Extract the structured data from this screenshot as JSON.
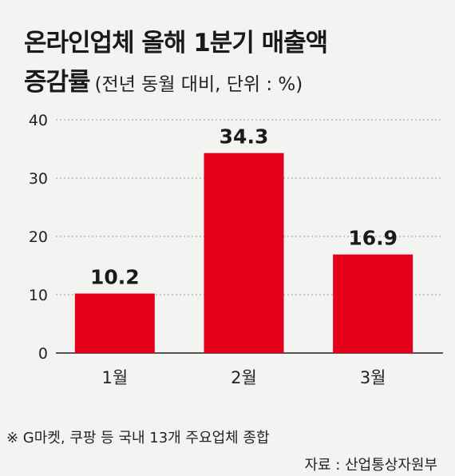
{
  "title": {
    "line1": "온라인업체 올해 1분기 매출액",
    "line2_main": "증감률",
    "line2_sub": "(전년 동월 대비, 단위 : %)"
  },
  "chart_data": {
    "type": "bar",
    "categories": [
      "1월",
      "2월",
      "3월"
    ],
    "values": [
      10.2,
      34.3,
      16.9
    ],
    "value_labels": [
      "10.2",
      "34.3",
      "16.9"
    ],
    "yticks": [
      "0",
      "10",
      "20",
      "30",
      "40"
    ],
    "ylim": [
      0,
      40
    ],
    "grid": true,
    "bar_color": "#e4001b"
  },
  "footer": {
    "note": "※ G마켓, 쿠팡 등 국내 13개 주요업체 종합",
    "source": "자료 : 산업통상자원부"
  }
}
